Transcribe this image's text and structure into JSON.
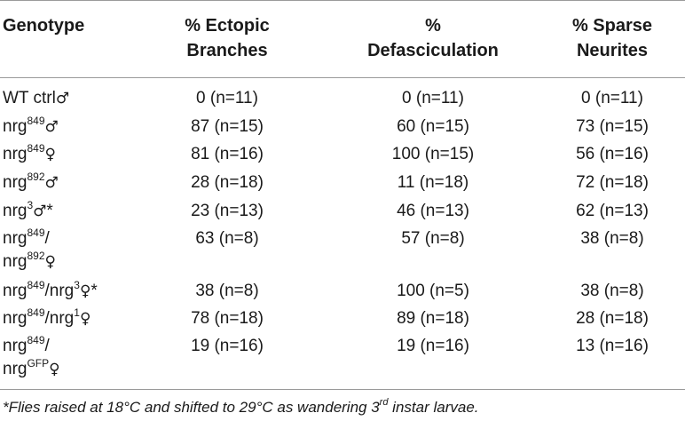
{
  "headers": {
    "genotype": "Genotype",
    "ectopic": [
      "% Ectopic",
      "Branches"
    ],
    "defasc": [
      "%",
      "Defasciculation"
    ],
    "sparse": [
      "% Sparse",
      "Neurites"
    ]
  },
  "symbols": {
    "male": "♂",
    "female": "♀",
    "star": "*"
  },
  "rows": [
    {
      "genotype_base": "WT ctrl",
      "ectopic": "0 (n=11)",
      "defasc": "0 (n=11)",
      "sparse": "0 (n=11)"
    },
    {
      "genotype_base": "nrg",
      "allele": "849",
      "ectopic": "87 (n=15)",
      "defasc": "60 (n=15)",
      "sparse": "73 (n=15)"
    },
    {
      "genotype_base": "nrg",
      "allele": "849",
      "ectopic": "81 (n=16)",
      "defasc": "100 (n=15)",
      "sparse": "56 (n=16)"
    },
    {
      "genotype_base": "nrg",
      "allele": "892",
      "ectopic": "28 (n=18)",
      "defasc": "11 (n=18)",
      "sparse": "72 (n=18)"
    },
    {
      "genotype_base": "nrg",
      "allele": "3",
      "ectopic": "23 (n=13)",
      "defasc": "46 (n=13)",
      "sparse": "62 (n=13)"
    },
    {
      "genotype_base": "nrg",
      "allele": "849",
      "genotype_sep": "/",
      "genotype_base2": "nrg",
      "allele2": "892",
      "ectopic": "63 (n=8)",
      "defasc": "57 (n=8)",
      "sparse": "38 (n=8)"
    },
    {
      "genotype_base": "nrg",
      "allele": "849",
      "genotype_sep": "/nrg",
      "allele2": "3",
      "ectopic": "38 (n=8)",
      "defasc": "100 (n=5)",
      "sparse": "38 (n=8)"
    },
    {
      "genotype_base": "nrg",
      "allele": "849",
      "genotype_sep": "/nrg",
      "allele2": "1",
      "ectopic": "78 (n=18)",
      "defasc": "89 (n=18)",
      "sparse": "28 (n=18)"
    },
    {
      "genotype_base": "nrg",
      "allele": "849",
      "genotype_sep": "/",
      "genotype_base2": "nrg",
      "allele2": "GFP",
      "ectopic": "19 (n=16)",
      "defasc": "19 (n=16)",
      "sparse": "13 (n=16)"
    }
  ],
  "footnote": {
    "before": "*Flies raised at 18°C and shifted to 29°C as wandering 3",
    "sup": "rd",
    "after": " instar larvae."
  }
}
